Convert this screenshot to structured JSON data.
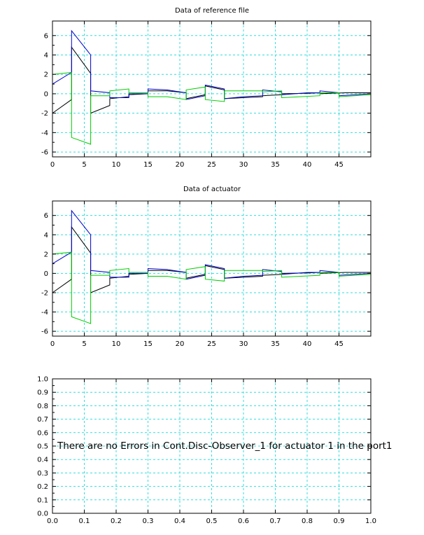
{
  "chart_data": [
    {
      "type": "line",
      "title": "Data of reference file",
      "xlabel": "",
      "ylabel": "",
      "xlim": [
        0,
        50
      ],
      "ylim": [
        -6.5,
        7.5
      ],
      "x_ticks": [
        "0",
        "5",
        "10",
        "15",
        "20",
        "25",
        "30",
        "35",
        "40",
        "45"
      ],
      "y_ticks": [
        "-6",
        "-4",
        "-2",
        "0",
        "2",
        "4",
        "6"
      ],
      "grid": true,
      "colors": [
        "#000000",
        "#0000cc",
        "#00cc00"
      ],
      "series": [
        {
          "points": [
            [
              0,
              -2
            ],
            [
              3,
              -0.6
            ],
            [
              3,
              4.8
            ],
            [
              6,
              2.1
            ],
            [
              6,
              -2
            ],
            [
              9,
              -1.2
            ],
            [
              9,
              -0.5
            ],
            [
              12,
              -0.3
            ],
            [
              12,
              -0.1
            ],
            [
              15,
              0
            ],
            [
              15,
              0.3
            ],
            [
              18,
              0.3
            ],
            [
              21,
              0.1
            ],
            [
              21,
              -0.5
            ],
            [
              24,
              -0.1
            ],
            [
              24,
              0.8
            ],
            [
              27,
              0.4
            ],
            [
              27,
              -0.5
            ],
            [
              30,
              -0.4
            ],
            [
              33,
              -0.3
            ],
            [
              33,
              -0.2
            ],
            [
              36,
              -0.1
            ],
            [
              36,
              0
            ],
            [
              40,
              0.05
            ],
            [
              42,
              0.1
            ],
            [
              42,
              0
            ],
            [
              46,
              0.1
            ],
            [
              50,
              0.1
            ]
          ]
        },
        {
          "points": [
            [
              0,
              1
            ],
            [
              3,
              2.2
            ],
            [
              3,
              6.5
            ],
            [
              6,
              4
            ],
            [
              6,
              0.3
            ],
            [
              9,
              0.1
            ],
            [
              9,
              -0.4
            ],
            [
              12,
              -0.4
            ],
            [
              12,
              0
            ],
            [
              15,
              0
            ],
            [
              15,
              0.5
            ],
            [
              18,
              0.4
            ],
            [
              21,
              0.1
            ],
            [
              21,
              -0.6
            ],
            [
              24,
              -0.2
            ],
            [
              24,
              0.9
            ],
            [
              27,
              0.5
            ],
            [
              27,
              -0.5
            ],
            [
              30,
              -0.3
            ],
            [
              33,
              -0.2
            ],
            [
              33,
              0.4
            ],
            [
              36,
              0.2
            ],
            [
              36,
              -0.1
            ],
            [
              40,
              0.1
            ],
            [
              42,
              0.1
            ],
            [
              42,
              0.3
            ],
            [
              45,
              0.1
            ],
            [
              45,
              -0.2
            ],
            [
              50,
              0
            ]
          ]
        },
        {
          "points": [
            [
              0,
              2
            ],
            [
              3,
              2.2
            ],
            [
              3,
              -4.5
            ],
            [
              6,
              -5.2
            ],
            [
              6,
              -0.2
            ],
            [
              9,
              -0.2
            ],
            [
              9,
              0.3
            ],
            [
              12,
              0.5
            ],
            [
              12,
              0.1
            ],
            [
              15,
              0.1
            ],
            [
              15,
              -0.3
            ],
            [
              18,
              -0.3
            ],
            [
              21,
              -0.6
            ],
            [
              21,
              0.4
            ],
            [
              24,
              0.7
            ],
            [
              24,
              -0.6
            ],
            [
              27,
              -0.8
            ],
            [
              27,
              0.3
            ],
            [
              30,
              0.3
            ],
            [
              33,
              0.3
            ],
            [
              33,
              0.2
            ],
            [
              36,
              0.3
            ],
            [
              36,
              -0.4
            ],
            [
              39,
              -0.3
            ],
            [
              42,
              -0.2
            ],
            [
              42,
              0.1
            ],
            [
              45,
              0.1
            ],
            [
              45,
              -0.3
            ],
            [
              50,
              -0.1
            ]
          ]
        }
      ]
    },
    {
      "type": "line",
      "title": "Data of actuator",
      "xlabel": "",
      "ylabel": "",
      "xlim": [
        0,
        50
      ],
      "ylim": [
        -6.5,
        7.5
      ],
      "x_ticks": [
        "0",
        "5",
        "10",
        "15",
        "20",
        "25",
        "30",
        "35",
        "40",
        "45"
      ],
      "y_ticks": [
        "-6",
        "-4",
        "-2",
        "0",
        "2",
        "4",
        "6"
      ],
      "grid": true,
      "colors": [
        "#000000",
        "#0000cc",
        "#00cc00"
      ],
      "series": [
        {
          "points": [
            [
              0,
              -2
            ],
            [
              3,
              -0.6
            ],
            [
              3,
              4.8
            ],
            [
              6,
              2.1
            ],
            [
              6,
              -2
            ],
            [
              9,
              -1.2
            ],
            [
              9,
              -0.5
            ],
            [
              12,
              -0.3
            ],
            [
              12,
              -0.1
            ],
            [
              15,
              0
            ],
            [
              15,
              0.3
            ],
            [
              18,
              0.3
            ],
            [
              21,
              0.1
            ],
            [
              21,
              -0.5
            ],
            [
              24,
              -0.1
            ],
            [
              24,
              0.8
            ],
            [
              27,
              0.4
            ],
            [
              27,
              -0.5
            ],
            [
              30,
              -0.4
            ],
            [
              33,
              -0.3
            ],
            [
              33,
              -0.2
            ],
            [
              36,
              -0.1
            ],
            [
              36,
              0
            ],
            [
              40,
              0.05
            ],
            [
              42,
              0.1
            ],
            [
              42,
              0
            ],
            [
              46,
              0.1
            ],
            [
              50,
              0.1
            ]
          ]
        },
        {
          "points": [
            [
              0,
              1
            ],
            [
              3,
              2.2
            ],
            [
              3,
              6.5
            ],
            [
              6,
              4
            ],
            [
              6,
              0.3
            ],
            [
              9,
              0.1
            ],
            [
              9,
              -0.4
            ],
            [
              12,
              -0.4
            ],
            [
              12,
              0
            ],
            [
              15,
              0
            ],
            [
              15,
              0.5
            ],
            [
              18,
              0.4
            ],
            [
              21,
              0.1
            ],
            [
              21,
              -0.6
            ],
            [
              24,
              -0.2
            ],
            [
              24,
              0.9
            ],
            [
              27,
              0.5
            ],
            [
              27,
              -0.5
            ],
            [
              30,
              -0.3
            ],
            [
              33,
              -0.2
            ],
            [
              33,
              0.4
            ],
            [
              36,
              0.2
            ],
            [
              36,
              -0.1
            ],
            [
              40,
              0.1
            ],
            [
              42,
              0.1
            ],
            [
              42,
              0.3
            ],
            [
              45,
              0.1
            ],
            [
              45,
              -0.2
            ],
            [
              50,
              0
            ]
          ]
        },
        {
          "points": [
            [
              0,
              2
            ],
            [
              3,
              2.2
            ],
            [
              3,
              -4.5
            ],
            [
              6,
              -5.2
            ],
            [
              6,
              -0.2
            ],
            [
              9,
              -0.2
            ],
            [
              9,
              0.3
            ],
            [
              12,
              0.5
            ],
            [
              12,
              0.1
            ],
            [
              15,
              0.1
            ],
            [
              15,
              -0.3
            ],
            [
              18,
              -0.3
            ],
            [
              21,
              -0.6
            ],
            [
              21,
              0.4
            ],
            [
              24,
              0.7
            ],
            [
              24,
              -0.6
            ],
            [
              27,
              -0.8
            ],
            [
              27,
              0.3
            ],
            [
              30,
              0.3
            ],
            [
              33,
              0.3
            ],
            [
              33,
              0.2
            ],
            [
              36,
              0.3
            ],
            [
              36,
              -0.4
            ],
            [
              39,
              -0.3
            ],
            [
              42,
              -0.2
            ],
            [
              42,
              0.1
            ],
            [
              45,
              0.1
            ],
            [
              45,
              -0.3
            ],
            [
              50,
              -0.1
            ]
          ]
        }
      ]
    },
    {
      "type": "line",
      "title": "",
      "xlabel": "",
      "ylabel": "",
      "xlim": [
        0,
        1
      ],
      "ylim": [
        0,
        1
      ],
      "x_ticks": [
        "0.0",
        "0.1",
        "0.2",
        "0.3",
        "0.4",
        "0.5",
        "0.6",
        "0.7",
        "0.8",
        "0.9",
        "1.0"
      ],
      "y_ticks": [
        "0.0",
        "0.1",
        "0.2",
        "0.3",
        "0.4",
        "0.5",
        "0.6",
        "0.7",
        "0.8",
        "0.9",
        "1.0"
      ],
      "grid": true,
      "series": [],
      "annotation": "There are no Errors in Cont.Disc-Observer_1 for actuator  1 in the port1"
    }
  ]
}
